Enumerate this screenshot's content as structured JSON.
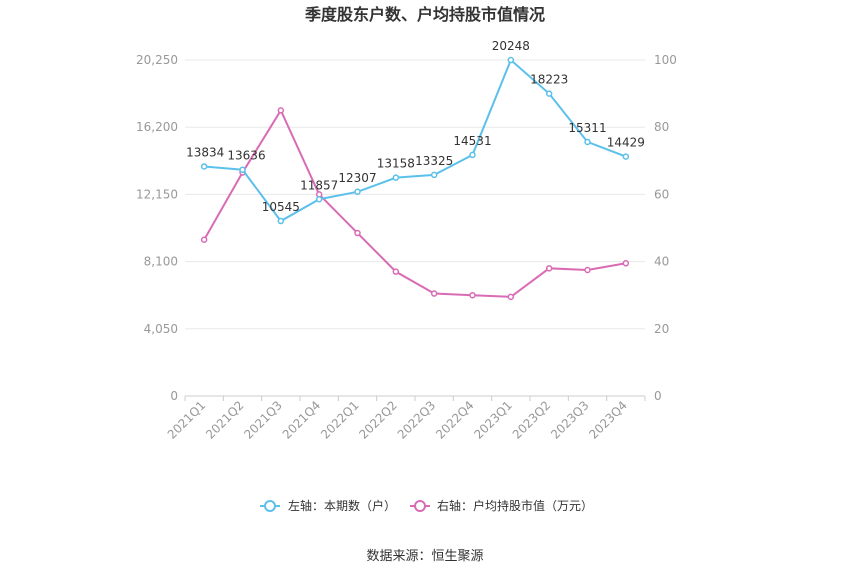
{
  "chart_data": {
    "type": "line",
    "title": "季度股东户数、户均持股市值情况",
    "categories": [
      "2021Q1",
      "2021Q2",
      "2021Q3",
      "2021Q4",
      "2022Q1",
      "2022Q2",
      "2022Q3",
      "2022Q4",
      "2023Q1",
      "2023Q2",
      "2023Q3",
      "2023Q4"
    ],
    "left_axis": {
      "ticks": [
        "0",
        "4,050",
        "8,100",
        "12,150",
        "16,200",
        "20,250"
      ],
      "min": 0,
      "max": 20250
    },
    "right_axis": {
      "ticks": [
        "0",
        "20",
        "40",
        "60",
        "80",
        "100"
      ],
      "min": 0,
      "max": 100
    },
    "series": [
      {
        "name": "左轴：本期数（户）",
        "axis": "left",
        "color": "#5bc0eb",
        "values": [
          13834,
          13636,
          10545,
          11857,
          12307,
          13158,
          13325,
          14531,
          20248,
          18223,
          15311,
          14429
        ],
        "labels": [
          "13834",
          "13636",
          "10545",
          "11857",
          "12307",
          "13158",
          "13325",
          "14531",
          "20248",
          "18223",
          "15311",
          "14429"
        ]
      },
      {
        "name": "右轴：户均持股市值（万元）",
        "axis": "right",
        "color": "#d96bb5",
        "values": [
          46.5,
          66.5,
          85.0,
          60.0,
          48.5,
          37.0,
          30.5,
          30.0,
          29.5,
          38.0,
          37.5,
          39.5
        ]
      }
    ],
    "grid": true,
    "legend_position": "bottom"
  },
  "source": "数据来源：恒生聚源"
}
